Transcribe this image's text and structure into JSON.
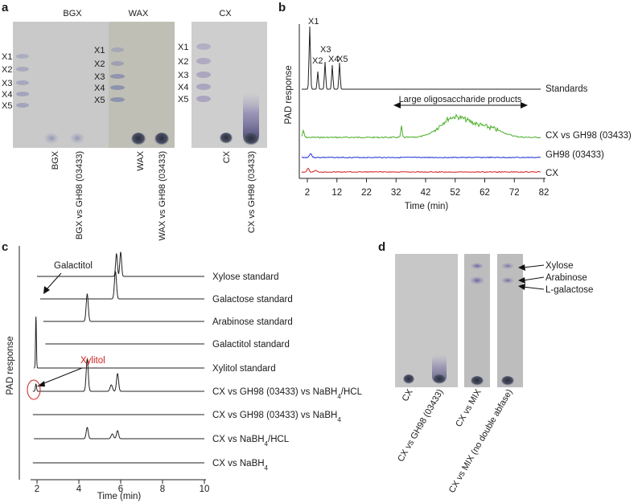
{
  "panels": {
    "a": {
      "label": "a",
      "plates": [
        {
          "title": "BGX",
          "lanes": [
            "BGX",
            "BGX vs GH98 (03433)"
          ],
          "ladder": [
            "X1",
            "X2",
            "X3",
            "X4",
            "X5"
          ]
        },
        {
          "title": "WAX",
          "lanes": [
            "WAX",
            "WAX vs GH98 (03433)"
          ],
          "ladder": [
            "X1",
            "X2",
            "X3",
            "X4",
            "X5"
          ]
        },
        {
          "title": "CX",
          "lanes": [
            "CX",
            "CX vs GH98 (03433)"
          ],
          "ladder": [
            "X1",
            "X2",
            "X3",
            "X4",
            "X5"
          ]
        }
      ]
    },
    "b": {
      "label": "b",
      "ylabel": "PAD response",
      "xlabel": "Time (min)",
      "ticks": [
        "2",
        "12",
        "22",
        "32",
        "42",
        "52",
        "62",
        "72",
        "82"
      ],
      "peak_labels": [
        "X1",
        "X2",
        "X3",
        "X4",
        "X5"
      ],
      "annotation": "Large oligosaccharide products",
      "traces": [
        {
          "name": "Standards",
          "color": "#222222"
        },
        {
          "name": "CX vs GH98 (03433)",
          "color": "#4caf2a"
        },
        {
          "name": "GH98 (03433)",
          "color": "#1f2fd6"
        },
        {
          "name": "CX",
          "color": "#d42020"
        }
      ]
    },
    "c": {
      "label": "c",
      "ylabel": "PAD response",
      "xlabel": "Time (min)",
      "ticks": [
        "2",
        "4",
        "6",
        "8",
        "10"
      ],
      "annot_galactitol": "Galactitol",
      "annot_xylitol": "Xylitol",
      "xylitol_color": "#cc2222",
      "traces": [
        "Xylose standard",
        "Galactose standard",
        "Arabinose standard",
        "Galactitol standard",
        "Xylitol standard",
        "CX vs GH98 (03433) vs NaBH4/HCL",
        "CX vs GH98 (03433) vs NaBH4",
        "CX vs NaBH4/HCL",
        "CX vs NaBH4"
      ]
    },
    "d": {
      "label": "d",
      "lanes": [
        "CX",
        "CX vs GH98 (03433)",
        "CX vs MIX",
        "CX vs MIX (no double abfase)"
      ],
      "spots": [
        "Xylose",
        "Arabinose",
        "L-galactose"
      ]
    }
  }
}
